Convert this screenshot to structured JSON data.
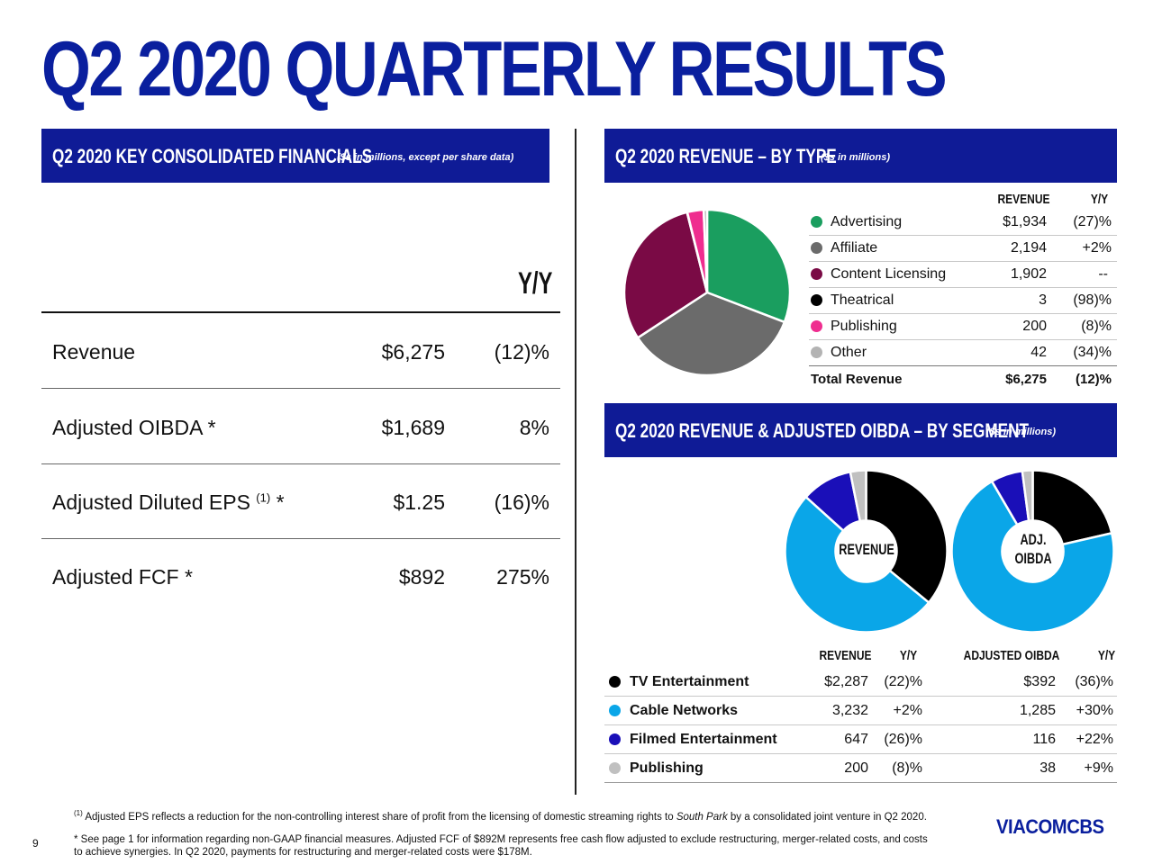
{
  "page": {
    "title": "Q2 2020 QUARTERLY RESULTS",
    "page_number": "9",
    "logo_text": "VIACOMCBS"
  },
  "key_financials": {
    "heading": "Q2 2020 KEY CONSOLIDATED FINANCIALS",
    "subheading": "($s in millions, except per share data)",
    "yy_header": "Y/Y",
    "rows": [
      {
        "label": "Revenue",
        "value": "$6,275",
        "yy": "(12)%"
      },
      {
        "label": "Adjusted OIBDA *",
        "value": "$1,689",
        "yy": "8%"
      },
      {
        "label": "Adjusted Diluted EPS",
        "label_sup": "(1)",
        "label_suffix": " *",
        "value": "$1.25",
        "yy": "(16)%"
      },
      {
        "label": "Adjusted FCF *",
        "value": "$892",
        "yy": "275%"
      }
    ]
  },
  "revenue_by_type": {
    "heading": "Q2 2020 REVENUE – BY TYPE",
    "subheading": "($s in millions)",
    "col_revenue": "REVENUE",
    "col_yy": "Y/Y",
    "rows": [
      {
        "label": "Advertising",
        "revenue": "$1,934",
        "yy": "(27)%",
        "color": "#1a9e5f"
      },
      {
        "label": "Affiliate",
        "revenue": "2,194",
        "yy": "+2%",
        "color": "#6b6b6b"
      },
      {
        "label": "Content Licensing",
        "revenue": "1,902",
        "yy": "--",
        "color": "#7a0a45"
      },
      {
        "label": "Theatrical",
        "revenue": "3",
        "yy": "(98)%",
        "color": "#000000"
      },
      {
        "label": "Publishing",
        "revenue": "200",
        "yy": "(8)%",
        "color": "#ef2d8f"
      },
      {
        "label": "Other",
        "revenue": "42",
        "yy": "(34)%",
        "color": "#b3b3b3"
      }
    ],
    "total": {
      "label": "Total Revenue",
      "revenue": "$6,275",
      "yy": "(12)%"
    }
  },
  "by_segment": {
    "heading": "Q2 2020 REVENUE & ADJUSTED OIBDA – BY SEGMENT",
    "subheading": "($s in millions)",
    "pie_label_revenue": "REVENUE",
    "pie_label_oibda_1": "ADJ.",
    "pie_label_oibda_2": "OIBDA",
    "col_revenue": "REVENUE",
    "col_rev_yy": "Y/Y",
    "col_oibda": "ADJUSTED OIBDA",
    "col_oibda_yy": "Y/Y",
    "rows": [
      {
        "label": "TV Entertainment",
        "revenue": "$2,287",
        "rev_yy": "(22)%",
        "oibda": "$392",
        "oibda_yy": "(36)%",
        "color": "#000000"
      },
      {
        "label": "Cable Networks",
        "revenue": "3,232",
        "rev_yy": "+2%",
        "oibda": "1,285",
        "oibda_yy": "+30%",
        "color": "#0aa6e8"
      },
      {
        "label": "Filmed Entertainment",
        "revenue": "647",
        "rev_yy": "(26)%",
        "oibda": "116",
        "oibda_yy": "+22%",
        "color": "#1a0fb8"
      },
      {
        "label": "Publishing",
        "revenue": "200",
        "rev_yy": "(8)%",
        "oibda": "38",
        "oibda_yy": "+9%",
        "color": "#c0c0c0"
      }
    ]
  },
  "footnotes": {
    "note1_sup": "(1)",
    "note1_a": " Adjusted EPS reflects a reduction for the non-controlling interest share of profit from the licensing of domestic streaming rights to ",
    "note1_italic": "South Park",
    "note1_b": " by a consolidated joint venture in Q2 2020.",
    "note2": "* See page 1 for information regarding non-GAAP financial measures. Adjusted FCF of $892M represents free cash flow adjusted to exclude restructuring, merger-related costs, and costs to achieve synergies. In Q2 2020, payments for restructuring and merger-related costs were $178M."
  },
  "chart_data": [
    {
      "type": "pie",
      "title": "Q2 2020 Revenue – By Type",
      "categories": [
        "Advertising",
        "Affiliate",
        "Content Licensing",
        "Theatrical",
        "Publishing",
        "Other"
      ],
      "values": [
        1934,
        2194,
        1902,
        3,
        200,
        42
      ],
      "colors": [
        "#1a9e5f",
        "#6b6b6b",
        "#7a0a45",
        "#000000",
        "#ef2d8f",
        "#b3b3b3"
      ]
    },
    {
      "type": "pie",
      "title": "Revenue by Segment",
      "categories": [
        "TV Entertainment",
        "Cable Networks",
        "Filmed Entertainment",
        "Publishing"
      ],
      "values": [
        2287,
        3232,
        647,
        200
      ],
      "colors": [
        "#000000",
        "#0aa6e8",
        "#1a0fb8",
        "#c0c0c0"
      ]
    },
    {
      "type": "pie",
      "title": "Adjusted OIBDA by Segment",
      "categories": [
        "TV Entertainment",
        "Cable Networks",
        "Filmed Entertainment",
        "Publishing"
      ],
      "values": [
        392,
        1285,
        116,
        38
      ],
      "colors": [
        "#000000",
        "#0aa6e8",
        "#1a0fb8",
        "#c0c0c0"
      ]
    }
  ]
}
